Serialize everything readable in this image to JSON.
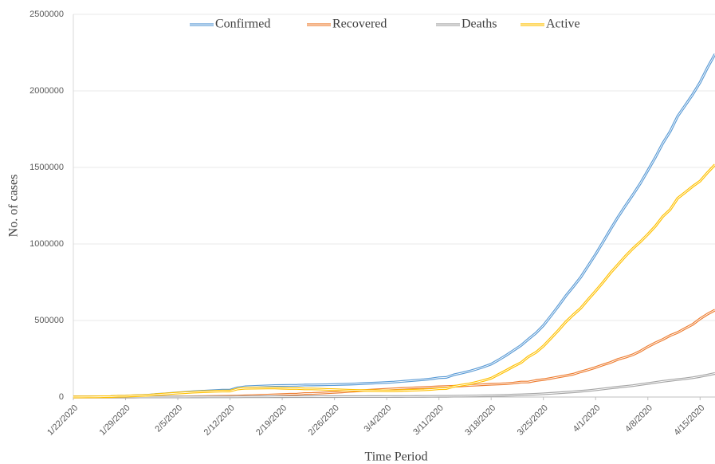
{
  "chart_data": {
    "type": "line",
    "y_label": "No. of cases",
    "x_label": "Time Period",
    "categories": [
      "1/22/2020",
      null,
      null,
      null,
      null,
      null,
      null,
      "1/29/2020",
      null,
      null,
      null,
      null,
      null,
      null,
      "2/5/2020",
      null,
      null,
      null,
      null,
      null,
      null,
      "2/12/2020",
      null,
      null,
      null,
      null,
      null,
      null,
      "2/19/2020",
      null,
      null,
      null,
      null,
      null,
      null,
      "2/26/2020",
      null,
      null,
      null,
      null,
      null,
      null,
      "3/4/2020",
      null,
      null,
      null,
      null,
      null,
      null,
      "3/11/2020",
      null,
      null,
      null,
      null,
      null,
      null,
      "3/18/2020",
      null,
      null,
      null,
      null,
      null,
      null,
      "3/25/2020",
      null,
      null,
      null,
      null,
      null,
      null,
      "4/1/2020",
      null,
      null,
      null,
      null,
      null,
      null,
      "4/8/2020",
      null,
      null,
      null,
      null,
      null,
      null,
      "4/15/2020",
      null,
      null
    ],
    "series": [
      {
        "name": "Confirmed",
        "color": "#5b9bd5",
        "values": [
          555,
          654,
          941,
          1434,
          2118,
          2927,
          5578,
          6166,
          8234,
          9927,
          12038,
          16787,
          19881,
          23892,
          27635,
          30794,
          34391,
          37120,
          40150,
          42762,
          44802,
          45221,
          60368,
          66885,
          69030,
          71224,
          73258,
          75136,
          75639,
          76197,
          76819,
          78572,
          78958,
          79561,
          80406,
          81388,
          82746,
          84112,
          86011,
          88369,
          90306,
          92840,
          95120,
          97886,
          101801,
          105847,
          109821,
          113590,
          118620,
          125875,
          128352,
          145205,
          156101,
          167454,
          181574,
          197102,
          214821,
          242570,
          272208,
          304507,
          336953,
          378235,
          418045,
          467653,
          529591,
          593291,
          660706,
          720117,
          782365,
          857487,
          932605,
          1013157,
          1095917,
          1176060,
          1249754,
          1321481,
          1396476,
          1480202,
          1565278,
          1657526,
          1735650,
          1834721,
          1904838,
          1976191,
          2056054,
          2152437,
          2240190
        ]
      },
      {
        "name": "Recovered",
        "color": "#ed7d31",
        "values": [
          28,
          30,
          36,
          39,
          52,
          61,
          107,
          126,
          143,
          222,
          284,
          472,
          623,
          852,
          1124,
          1487,
          2011,
          2616,
          3244,
          3946,
          4683,
          5150,
          6295,
          8058,
          9395,
          10865,
          12583,
          14352,
          16121,
          18177,
          18890,
          22886,
          23394,
          25227,
          27905,
          30384,
          33277,
          36711,
          39782,
          42716,
          45602,
          48228,
          51170,
          53796,
          55865,
          58358,
          60694,
          62494,
          64404,
          67003,
          68324,
          70251,
          72624,
          76034,
          78088,
          80840,
          83207,
          84854,
          87256,
          91499,
          97704,
          98351,
          108000,
          113787,
          122150,
          130915,
          139415,
          149082,
          164566,
          178034,
          193177,
          210263,
          225796,
          246152,
          260012,
          276515,
          300054,
          328661,
          353975,
          376096,
          402110,
          421722,
          448655,
          474261,
          511019,
          542107,
          568343
        ]
      },
      {
        "name": "Deaths",
        "color": "#a5a5a5",
        "values": [
          17,
          18,
          26,
          42,
          56,
          82,
          131,
          133,
          171,
          213,
          259,
          362,
          426,
          492,
          564,
          634,
          719,
          806,
          906,
          1013,
          1113,
          1118,
          1371,
          1523,
          1666,
          1770,
          1868,
          2007,
          2122,
          2247,
          2251,
          2458,
          2469,
          2629,
          2708,
          2770,
          2814,
          2872,
          2941,
          2996,
          3085,
          3160,
          3254,
          3348,
          3460,
          3558,
          3802,
          3988,
          4262,
          4615,
          4720,
          5404,
          5819,
          6440,
          7126,
          7905,
          8733,
          9867,
          11299,
          12973,
          14623,
          16497,
          18615,
          21181,
          23970,
          27198,
          30652,
          33925,
          37582,
          42107,
          47180,
          52983,
          58787,
          64606,
          69374,
          74565,
          81865,
          88338,
          95455,
          102525,
          108503,
          114090,
          119481,
          125983,
          134176,
          143800,
          153822
        ]
      },
      {
        "name": "Active",
        "color": "#ffc000",
        "values": [
          510,
          606,
          879,
          1353,
          2010,
          2784,
          5340,
          5907,
          7920,
          9492,
          11495,
          15953,
          18832,
          22548,
          25947,
          28673,
          31661,
          33698,
          36000,
          37803,
          39006,
          38953,
          52702,
          57304,
          57969,
          58589,
          58807,
          58777,
          57396,
          55773,
          55678,
          53228,
          53095,
          51705,
          49793,
          48234,
          46655,
          44529,
          43288,
          42657,
          41619,
          41452,
          40696,
          40742,
          42476,
          43931,
          45325,
          47108,
          49954,
          54257,
          55308,
          69550,
          77658,
          84980,
          96360,
          108357,
          122881,
          147849,
          173653,
          200035,
          224626,
          263387,
          291430,
          332685,
          383471,
          435178,
          490639,
          537110,
          580217,
          637346,
          692248,
          749911,
          811334,
          865302,
          920368,
          970401,
          1014557,
          1063203,
          1115848,
          1178905,
          1225037,
          1298909,
          1336702,
          1375947,
          1410859,
          1466530,
          1518025
        ]
      }
    ],
    "ylim": [
      0,
      2500000
    ],
    "yticks": [
      0,
      500000,
      1000000,
      1500000,
      2000000,
      2500000
    ],
    "grid": true,
    "legend": "top"
  }
}
